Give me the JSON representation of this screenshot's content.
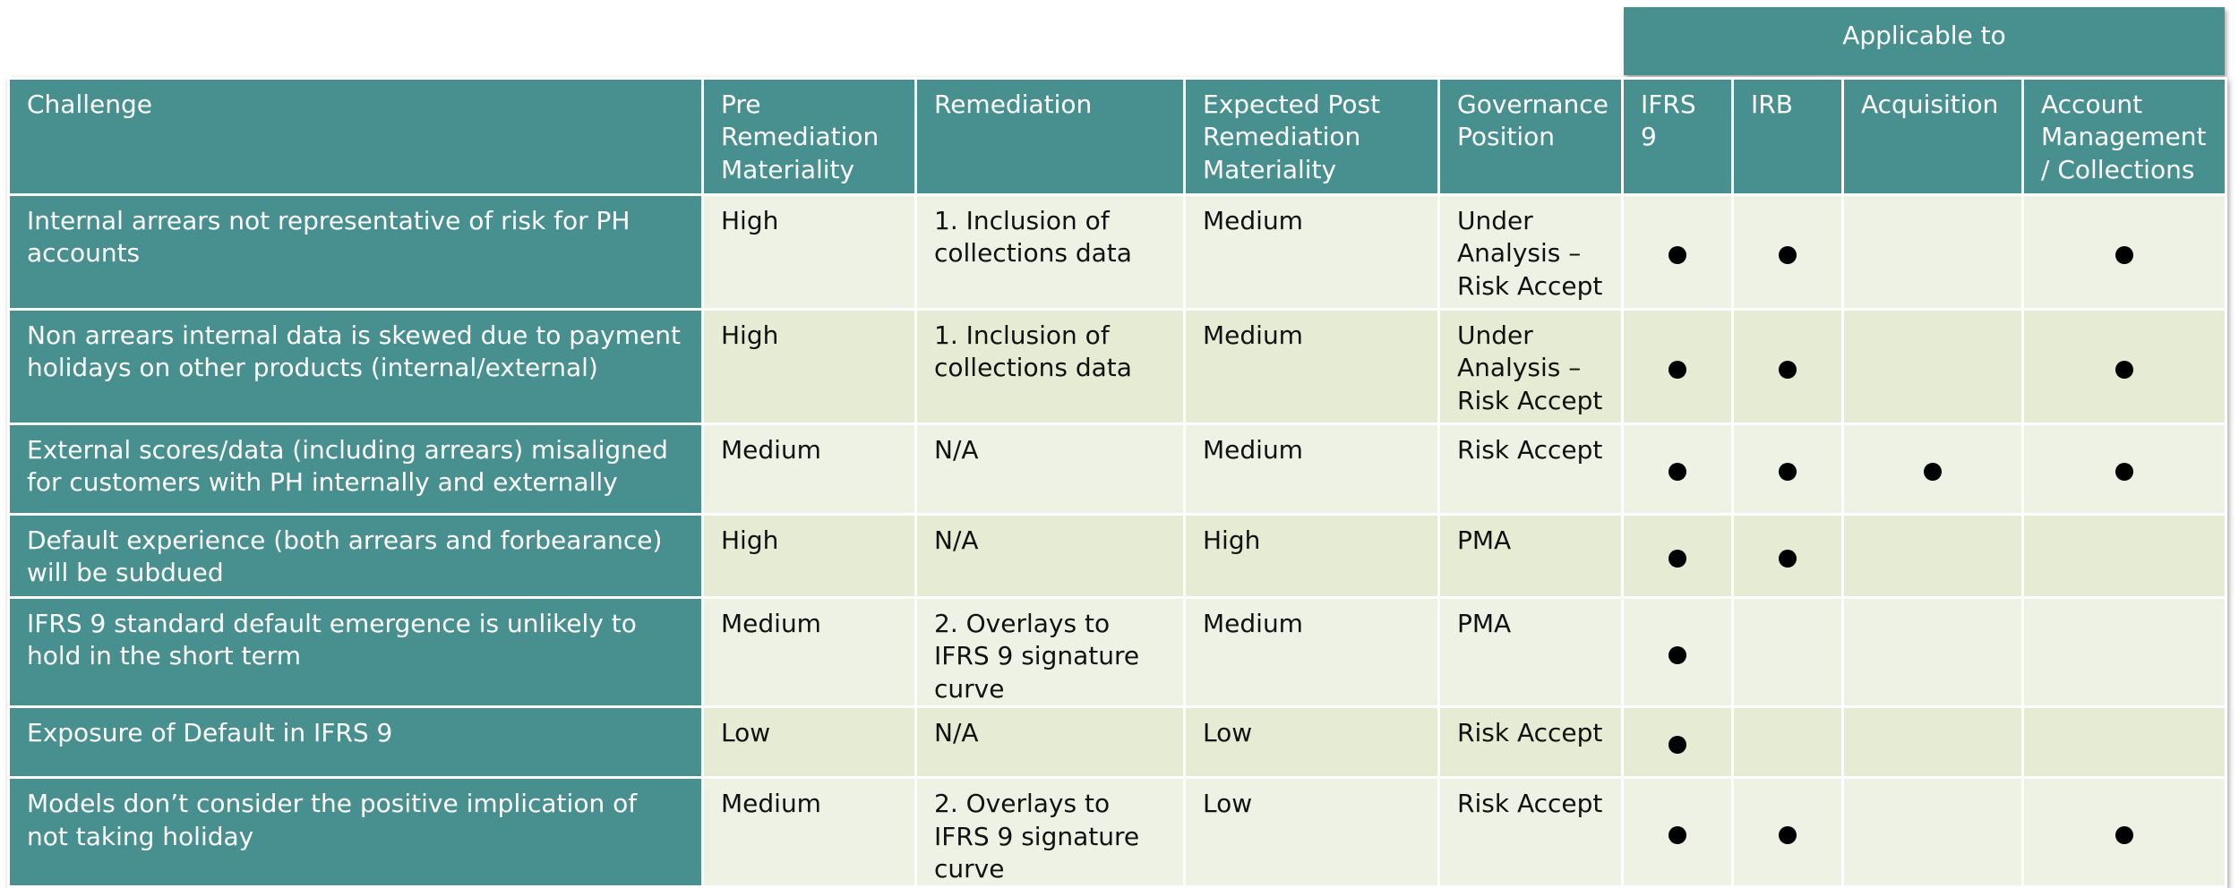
{
  "group_header": "Applicable to",
  "columns": {
    "challenge": "Challenge",
    "pre": "Pre Remediation Materiality",
    "remediation": "Remediation",
    "post": "Expected Post Remediation Materiality",
    "governance": "Governance Position",
    "ifrs9": "IFRS 9",
    "irb": "IRB",
    "acquisition": "Acquisition",
    "account_mgmt": "Account Management / Collections"
  },
  "rows": [
    {
      "challenge": "Internal arrears not representative of risk for PH accounts",
      "pre": "High",
      "remediation": "1. Inclusion of collections data",
      "post": "Medium",
      "governance": "Under Analysis – Risk Accept",
      "ifrs9": true,
      "irb": true,
      "acquisition": false,
      "account_mgmt": true
    },
    {
      "challenge": "Non arrears internal data is skewed due to payment holidays on other products (internal/external)",
      "pre": "High",
      "remediation": "1. Inclusion of collections data",
      "post": "Medium",
      "governance": "Under Analysis – Risk Accept",
      "ifrs9": true,
      "irb": true,
      "acquisition": false,
      "account_mgmt": true
    },
    {
      "challenge": "External scores/data (including arrears) misaligned for customers with PH internally and externally",
      "pre": "Medium",
      "remediation": "N/A",
      "post": "Medium",
      "governance": "Risk Accept",
      "ifrs9": true,
      "irb": true,
      "acquisition": true,
      "account_mgmt": true
    },
    {
      "challenge": "Default experience (both arrears and forbearance) will be subdued",
      "pre": "High",
      "remediation": "N/A",
      "post": "High",
      "governance": "PMA",
      "ifrs9": true,
      "irb": true,
      "acquisition": false,
      "account_mgmt": false
    },
    {
      "challenge": "IFRS 9 standard default emergence is unlikely to hold in the short term",
      "pre": "Medium",
      "remediation": "2. Overlays to IFRS 9 signature curve",
      "post": "Medium",
      "governance": "PMA",
      "ifrs9": true,
      "irb": false,
      "acquisition": false,
      "account_mgmt": false
    },
    {
      "challenge": "Exposure of Default in IFRS 9",
      "pre": "Low",
      "remediation": "N/A",
      "post": "Low",
      "governance": "Risk Accept",
      "ifrs9": true,
      "irb": false,
      "acquisition": false,
      "account_mgmt": false
    },
    {
      "challenge": "Models don’t consider the positive implication of not taking holiday",
      "pre": "Medium",
      "remediation": "2. Overlays to IFRS 9 signature curve",
      "post": "Low",
      "governance": "Risk Accept",
      "ifrs9": true,
      "irb": true,
      "acquisition": false,
      "account_mgmt": true
    }
  ]
}
